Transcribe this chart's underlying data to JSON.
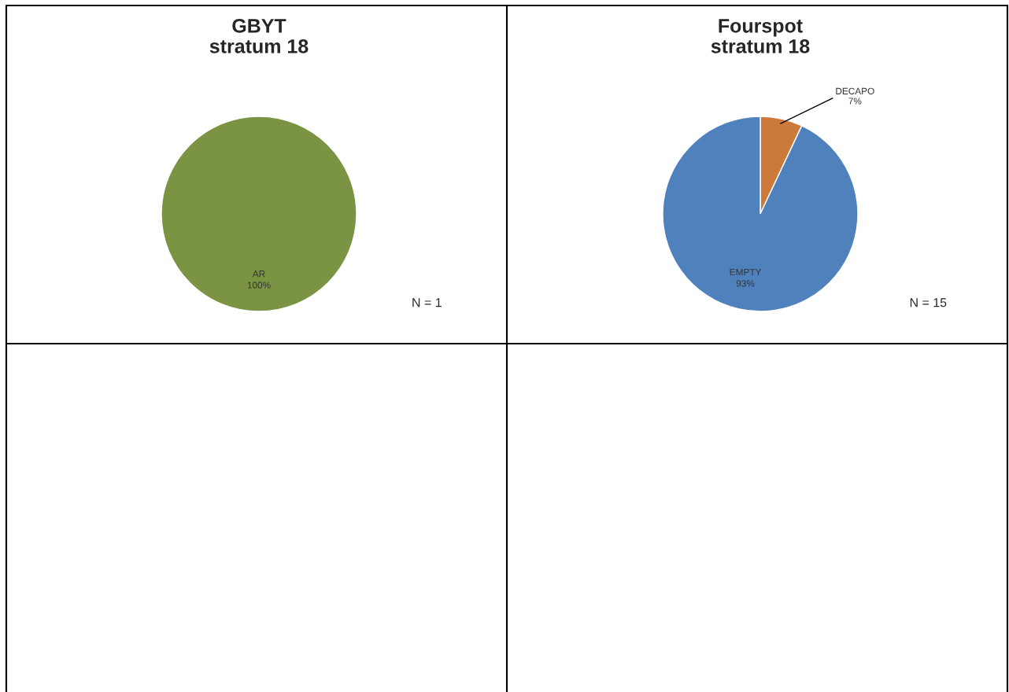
{
  "chart_data": [
    {
      "type": "pie",
      "title": "GBYT\nstratum 18",
      "categories": [
        "AR"
      ],
      "values": [
        100
      ],
      "colors": [
        "#7a9443"
      ],
      "value_labels": [
        "100%"
      ],
      "annotations": [
        "N = 1"
      ]
    },
    {
      "type": "pie",
      "title": "Fourspot\nstratum 18",
      "categories": [
        "DECAPO",
        "EMPTY"
      ],
      "values": [
        7,
        93
      ],
      "colors": [
        "#cc7a3a",
        "#4f81bd"
      ],
      "value_labels": [
        "7%",
        "93%"
      ],
      "annotations": [
        "N = 15"
      ]
    }
  ]
}
